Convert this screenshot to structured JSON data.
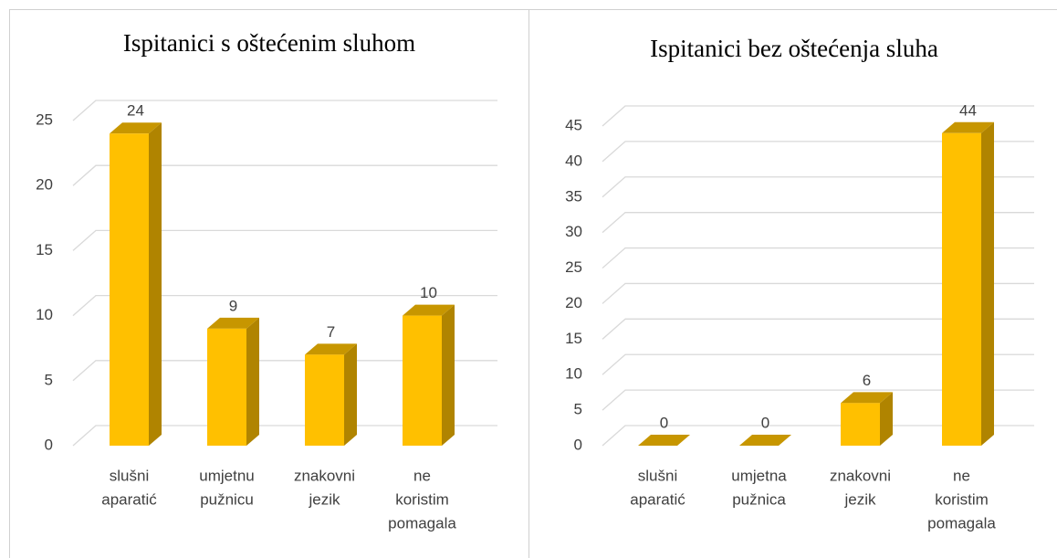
{
  "chart_data": [
    {
      "type": "bar3d",
      "title": "Ispitanici s oštećenim sluhom",
      "categories": [
        [
          "slušni",
          "aparatić"
        ],
        [
          "umjetnu",
          "pužnicu"
        ],
        [
          "znakovni",
          "jezik"
        ],
        [
          "ne",
          "koristim",
          "pomagala"
        ]
      ],
      "values": [
        24,
        9,
        7,
        10
      ],
      "color": "#ffc000",
      "ylim": [
        0,
        25
      ],
      "yticks": [
        0,
        5,
        10,
        15,
        20,
        25
      ],
      "grid": true
    },
    {
      "type": "bar3d",
      "title": "Ispitanici bez oštećenja sluha",
      "categories": [
        [
          "slušni",
          "aparatić"
        ],
        [
          "umjetna",
          "pužnica"
        ],
        [
          "znakovni",
          "jezik"
        ],
        [
          "ne",
          "koristim",
          "pomagala"
        ]
      ],
      "values": [
        0,
        0,
        6,
        44
      ],
      "color": "#ffc000",
      "ylim": [
        0,
        45
      ],
      "yticks": [
        0,
        5,
        10,
        15,
        20,
        25,
        30,
        35,
        40,
        45
      ],
      "grid": true
    }
  ]
}
